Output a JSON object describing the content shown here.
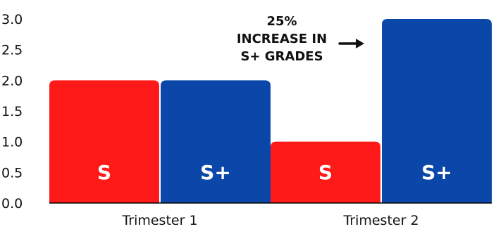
{
  "chart_data": {
    "type": "bar",
    "categories": [
      "Trimester 1",
      "Trimester 2"
    ],
    "series": [
      {
        "name": "S",
        "color": "#ff1a1a",
        "values": [
          2.0,
          1.0
        ]
      },
      {
        "name": "S+",
        "color": "#0a47a8",
        "values": [
          2.0,
          3.0
        ]
      }
    ],
    "bar_labels": [
      [
        "S",
        "S+"
      ],
      [
        "S",
        "S+"
      ]
    ],
    "yticks": [
      "0.0",
      "0.5",
      "1.0",
      "1.5",
      "2.0",
      "2.5",
      "3.0"
    ],
    "ylim": [
      0,
      3.0
    ],
    "grid": false,
    "legend": "none",
    "annotation": {
      "lines": [
        "25%",
        "INCREASE IN",
        "S+ GRADES"
      ],
      "arrow": "right"
    }
  }
}
